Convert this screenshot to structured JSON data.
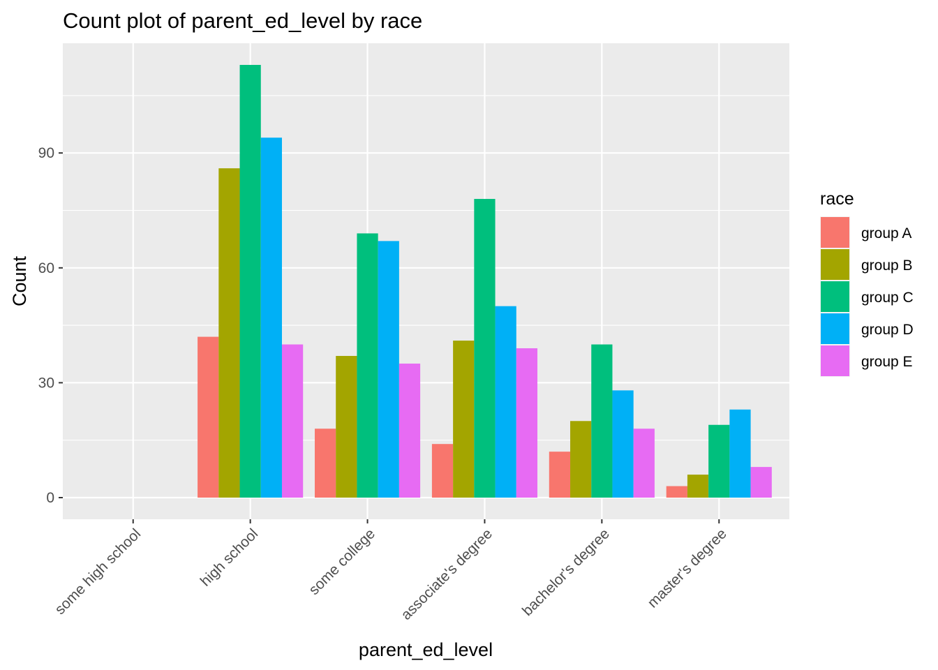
{
  "chart_data": {
    "type": "bar",
    "title": "Count plot of parent_ed_level by race",
    "xlabel": "parent_ed_level",
    "ylabel": "Count",
    "categories": [
      "some high school",
      "high school",
      "some college",
      "associate's degree",
      "bachelor's degree",
      "master's degree"
    ],
    "series": [
      {
        "name": "group A",
        "color": "#F8766D",
        "values": [
          0,
          42,
          18,
          14,
          12,
          3
        ]
      },
      {
        "name": "group B",
        "color": "#A3A500",
        "values": [
          0,
          86,
          37,
          41,
          20,
          6
        ]
      },
      {
        "name": "group C",
        "color": "#00BF7D",
        "values": [
          0,
          113,
          69,
          78,
          40,
          19
        ]
      },
      {
        "name": "group D",
        "color": "#00B0F6",
        "values": [
          0,
          94,
          67,
          50,
          28,
          23
        ]
      },
      {
        "name": "group E",
        "color": "#E76BF3",
        "values": [
          0,
          40,
          35,
          39,
          18,
          8
        ]
      }
    ],
    "yticks": [
      0,
      30,
      60,
      90
    ],
    "ylim": [
      -5.65,
      118.65
    ],
    "legend_title": "race",
    "legend_position": "right",
    "grid": true,
    "panel_background": "#EBEBEB",
    "grid_color": "#FFFFFF"
  }
}
